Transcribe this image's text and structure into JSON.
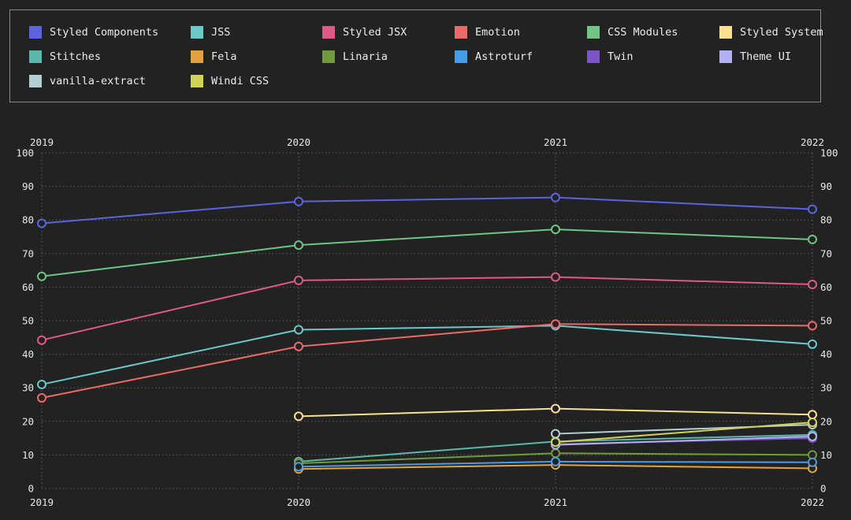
{
  "chart_data": {
    "type": "line",
    "x": [
      "2019",
      "2020",
      "2021",
      "2022"
    ],
    "ylim": [
      0,
      100
    ],
    "yticks": [
      0,
      10,
      20,
      30,
      40,
      50,
      60,
      70,
      80,
      90,
      100
    ],
    "grid": true,
    "legend_position": "top",
    "series": [
      {
        "name": "Styled Components",
        "color": "#5b63e0",
        "values": [
          79,
          85.5,
          86.7,
          83.2
        ]
      },
      {
        "name": "JSS",
        "color": "#6cc8c9",
        "values": [
          31,
          47.3,
          48.5,
          43
        ]
      },
      {
        "name": "Styled JSX",
        "color": "#dd5a87",
        "values": [
          44.2,
          62,
          63,
          60.8
        ]
      },
      {
        "name": "Emotion",
        "color": "#e96b68",
        "values": [
          27,
          42.3,
          49,
          48.5
        ]
      },
      {
        "name": "CSS Modules",
        "color": "#6ec584",
        "values": [
          63.2,
          72.5,
          77.2,
          74.2
        ]
      },
      {
        "name": "Styled System",
        "color": "#f9e08f",
        "values": [
          null,
          21.5,
          23.8,
          22
        ]
      },
      {
        "name": "Stitches",
        "color": "#5bb8ab",
        "values": [
          null,
          8,
          14,
          16
        ]
      },
      {
        "name": "Fela",
        "color": "#e2a23c",
        "values": [
          null,
          5.8,
          7,
          6
        ]
      },
      {
        "name": "Linaria",
        "color": "#6f9b3e",
        "values": [
          null,
          7.5,
          10.5,
          10
        ]
      },
      {
        "name": "Astroturf",
        "color": "#4a9be7",
        "values": [
          null,
          6.5,
          8,
          7.8
        ]
      },
      {
        "name": "Twin",
        "color": "#7c56c6",
        "values": [
          null,
          null,
          13.2,
          15
        ]
      },
      {
        "name": "Theme UI",
        "color": "#b2b0ee",
        "values": [
          null,
          null,
          13,
          15.5
        ]
      },
      {
        "name": "vanilla-extract",
        "color": "#b4cfd4",
        "values": [
          null,
          null,
          16.3,
          19
        ]
      },
      {
        "name": "Windi CSS",
        "color": "#cfd35a",
        "values": [
          null,
          null,
          13.8,
          19.7
        ]
      }
    ]
  }
}
